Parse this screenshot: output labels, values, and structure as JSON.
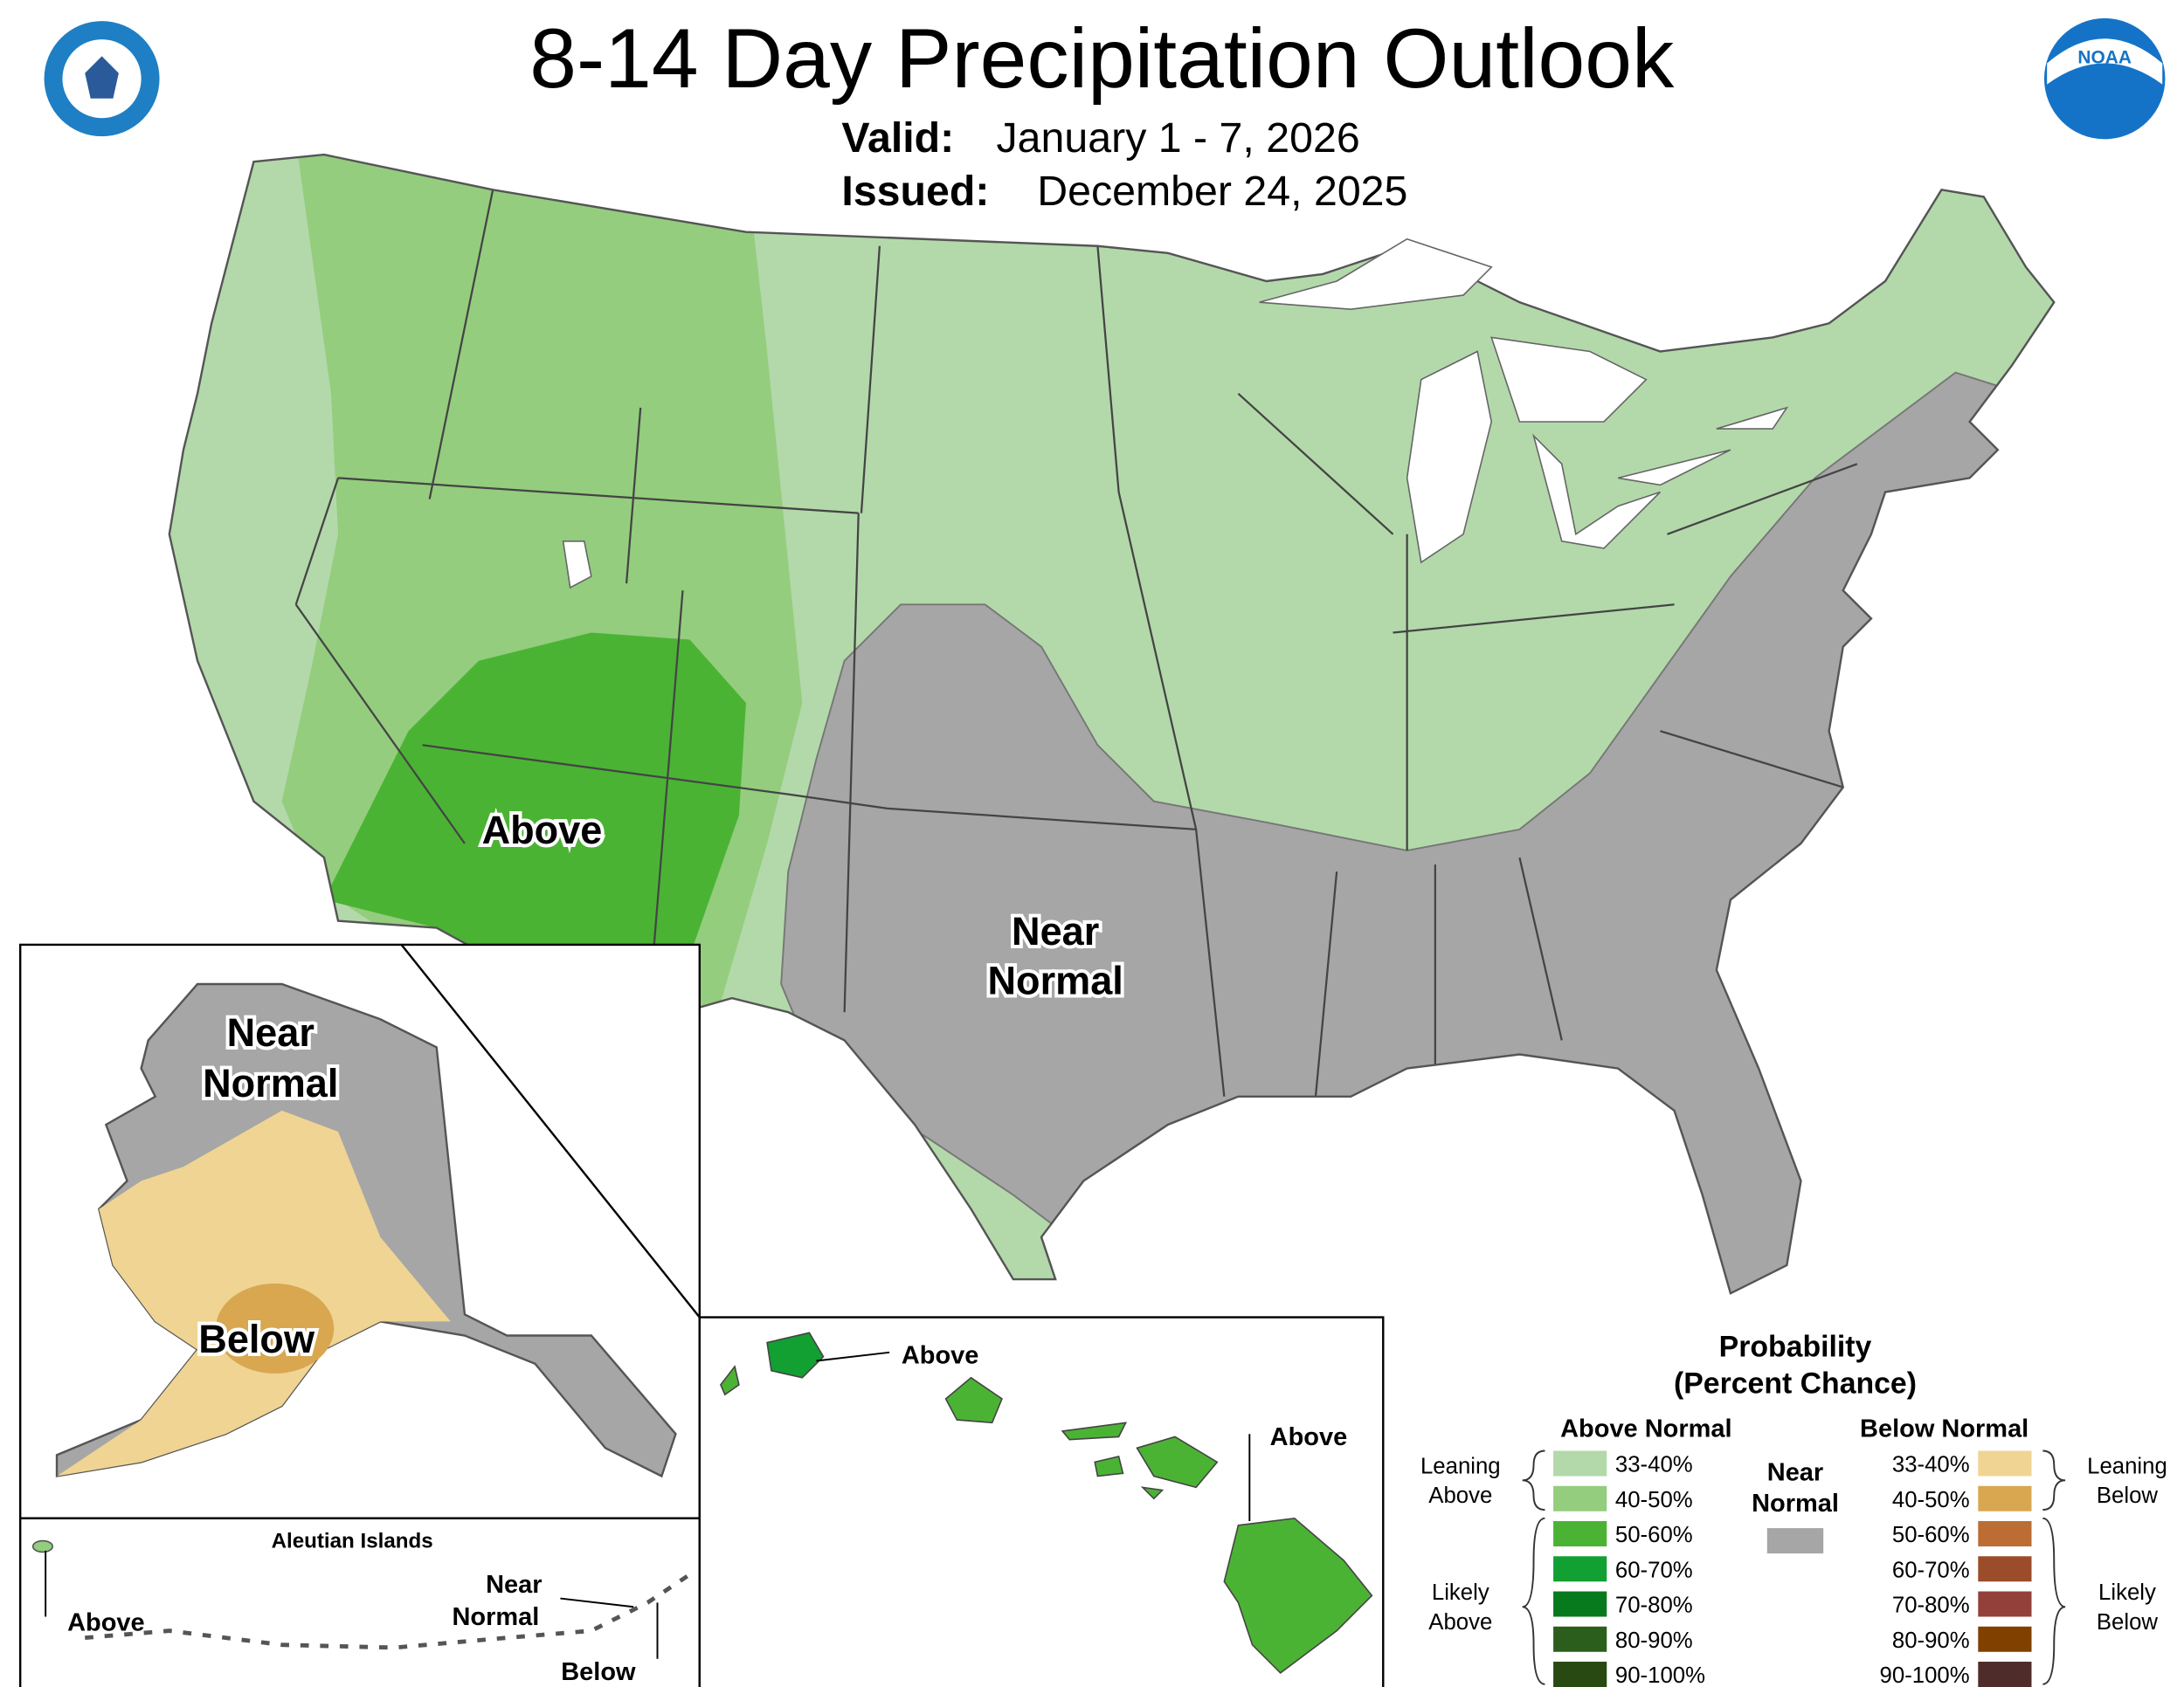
{
  "header": {
    "title": "8-14 Day Precipitation Outlook",
    "valid_label": "Valid:",
    "valid": "January 1 - 7, 2026",
    "issued_label": "Issued:",
    "issued": "December 24, 2025"
  },
  "logos": {
    "noaa": "NOAA"
  },
  "conus_labels": {
    "above": "Above",
    "near_normal": [
      "Near",
      "Normal"
    ]
  },
  "alaska_labels": {
    "near_normal": [
      "Near",
      "Normal"
    ],
    "below": "Below"
  },
  "aleutian": {
    "title": "Aleutian Islands",
    "above": "Above",
    "near_normal": [
      "Near",
      "Normal"
    ],
    "below": "Below"
  },
  "hawaii_labels": {
    "north": "Above",
    "south": "Above"
  },
  "legend": {
    "title": [
      "Probability",
      "(Percent Chance)"
    ],
    "above": {
      "header": "Above Normal",
      "leaning": [
        "Leaning",
        "Above"
      ],
      "likely": [
        "Likely",
        "Above"
      ],
      "bins": [
        {
          "label": "33-40%",
          "color": "#b3d9aa"
        },
        {
          "label": "40-50%",
          "color": "#94cd7e"
        },
        {
          "label": "50-60%",
          "color": "#4bb334"
        },
        {
          "label": "60-70%",
          "color": "#12a032"
        },
        {
          "label": "70-80%",
          "color": "#077a1e"
        },
        {
          "label": "80-90%",
          "color": "#2b5e1c"
        },
        {
          "label": "90-100%",
          "color": "#284912"
        }
      ]
    },
    "near_normal": {
      "header": [
        "Near",
        "Normal"
      ],
      "color": "#a6a6a6"
    },
    "below": {
      "header": "Below Normal",
      "leaning": [
        "Leaning",
        "Below"
      ],
      "likely": [
        "Likely",
        "Below"
      ],
      "bins": [
        {
          "label": "33-40%",
          "color": "#f0d493"
        },
        {
          "label": "40-50%",
          "color": "#d8a750"
        },
        {
          "label": "50-60%",
          "color": "#bb6d33"
        },
        {
          "label": "60-70%",
          "color": "#9b4c2b"
        },
        {
          "label": "70-80%",
          "color": "#93403a"
        },
        {
          "label": "80-90%",
          "color": "#804000"
        },
        {
          "label": "90-100%",
          "color": "#4e2c2a"
        }
      ]
    }
  }
}
